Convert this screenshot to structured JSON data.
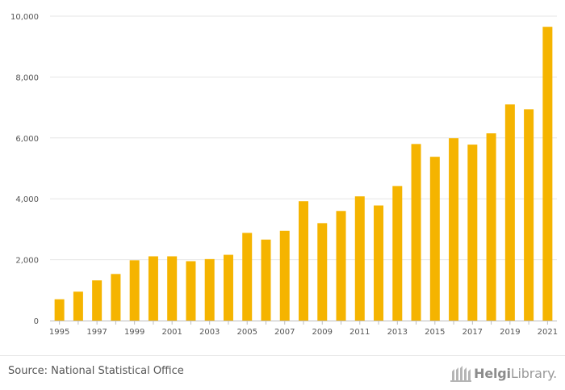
{
  "chart_data": {
    "type": "bar",
    "title": "",
    "xlabel": "",
    "ylabel": "",
    "ylim": [
      0,
      10000
    ],
    "yticks": [
      0,
      2000,
      4000,
      6000,
      8000,
      10000
    ],
    "ytick_labels": [
      "0",
      "2,000",
      "4,000",
      "6,000",
      "8,000",
      "10,000"
    ],
    "categories": [
      "1995",
      "1996",
      "1997",
      "1998",
      "1999",
      "2000",
      "2001",
      "2002",
      "2003",
      "2004",
      "2005",
      "2006",
      "2007",
      "2008",
      "2009",
      "2010",
      "2011",
      "2012",
      "2013",
      "2014",
      "2015",
      "2016",
      "2017",
      "2018",
      "2019",
      "2020",
      "2021"
    ],
    "xtick_labels": [
      "1995",
      "1997",
      "1999",
      "2001",
      "2003",
      "2005",
      "2007",
      "2009",
      "2011",
      "2013",
      "2015",
      "2017",
      "2019",
      "2021"
    ],
    "values": [
      700,
      950,
      1320,
      1530,
      1980,
      2110,
      2110,
      1950,
      2020,
      2160,
      2880,
      2660,
      2950,
      3920,
      3200,
      3600,
      4080,
      3780,
      4420,
      5800,
      5380,
      5990,
      5780,
      6150,
      7100,
      6940,
      9650
    ],
    "bar_color": "#f5b400",
    "grid": true
  },
  "footer": {
    "source": "Source: National Statistical Office",
    "logo_bold": "Helgi",
    "logo_rest": "Library.",
    "logo_icon": "helgi-library-logo-icon"
  }
}
